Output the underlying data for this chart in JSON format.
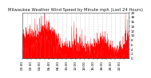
{
  "title": "Milwaukee Weather Wind Speed by Minute mph (Last 24 Hours)",
  "title_fontsize": 3.8,
  "ylim": [
    0,
    20
  ],
  "yticks": [
    0,
    2,
    4,
    6,
    8,
    10,
    12,
    14,
    16,
    18,
    20
  ],
  "num_points": 1440,
  "line_color": "#ff0000",
  "fill_color": "#ff0000",
  "background_color": "#ffffff",
  "plot_bg_color": "#ffffff",
  "grid_color": "#999999",
  "tick_fontsize": 3.0,
  "seed": 42,
  "wind_seed": 123
}
